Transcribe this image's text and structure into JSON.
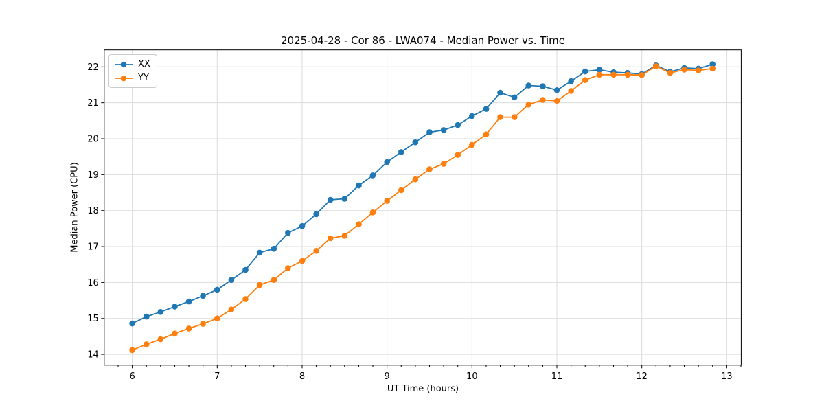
{
  "chart_data": {
    "type": "line",
    "title": "2025-04-28 - Cor 86 - LWA074 - Median Power vs. Time",
    "xlabel": "UT Time (hours)",
    "ylabel": "Median Power (CPU)",
    "xlim": [
      5.67,
      13.17
    ],
    "ylim": [
      13.7,
      22.47
    ],
    "x_ticks": [
      6,
      7,
      8,
      9,
      10,
      11,
      12,
      13
    ],
    "y_ticks": [
      14,
      15,
      16,
      17,
      18,
      19,
      20,
      21,
      22
    ],
    "x_minor_tick_step": 0.1667,
    "grid": true,
    "grid_color": "#dcdcdc",
    "legend_position": "upper-left",
    "x": [
      6.0,
      6.167,
      6.333,
      6.5,
      6.667,
      6.833,
      7.0,
      7.167,
      7.333,
      7.5,
      7.667,
      7.833,
      8.0,
      8.167,
      8.333,
      8.5,
      8.667,
      8.833,
      9.0,
      9.167,
      9.333,
      9.5,
      9.667,
      9.833,
      10.0,
      10.167,
      10.333,
      10.5,
      10.667,
      10.833,
      11.0,
      11.167,
      11.333,
      11.5,
      11.667,
      11.833,
      12.0,
      12.167,
      12.333,
      12.5,
      12.667,
      12.833
    ],
    "series": [
      {
        "name": "XX",
        "color": "#1f77b4",
        "values": [
          14.86,
          15.05,
          15.18,
          15.33,
          15.47,
          15.63,
          15.8,
          16.07,
          16.35,
          16.83,
          16.94,
          17.38,
          17.57,
          17.9,
          18.3,
          18.33,
          18.7,
          18.98,
          19.35,
          19.63,
          19.9,
          20.18,
          20.24,
          20.38,
          20.63,
          20.83,
          21.28,
          21.15,
          21.48,
          21.46,
          21.35,
          21.6,
          21.87,
          21.92,
          21.85,
          21.83,
          21.8,
          22.04,
          21.86,
          21.97,
          21.95,
          22.07
        ]
      },
      {
        "name": "YY",
        "color": "#ff7f0e",
        "values": [
          14.12,
          14.28,
          14.42,
          14.58,
          14.72,
          14.85,
          15.0,
          15.25,
          15.54,
          15.93,
          16.07,
          16.4,
          16.6,
          16.88,
          17.23,
          17.3,
          17.62,
          17.95,
          18.27,
          18.57,
          18.87,
          19.15,
          19.3,
          19.55,
          19.83,
          20.12,
          20.6,
          20.6,
          20.95,
          21.08,
          21.05,
          21.33,
          21.63,
          21.78,
          21.78,
          21.78,
          21.77,
          22.02,
          21.83,
          21.92,
          21.9,
          21.95
        ]
      }
    ]
  }
}
